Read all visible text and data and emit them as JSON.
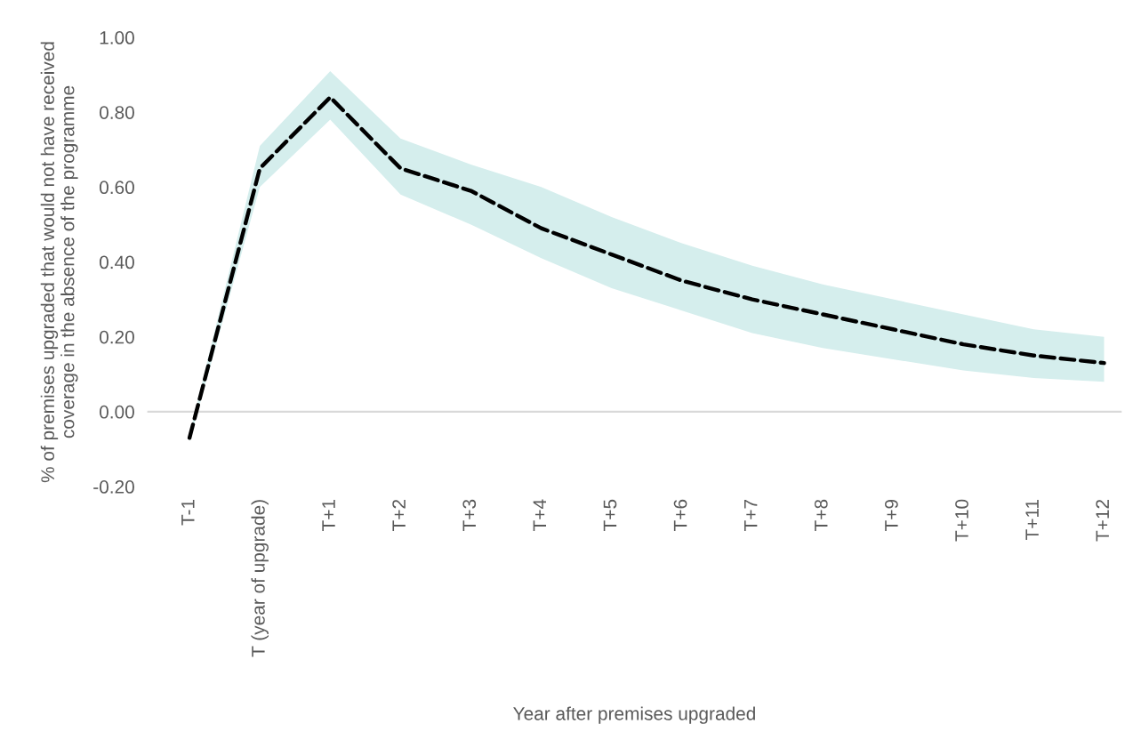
{
  "chart_data": {
    "type": "line",
    "xlabel": "Year after premises upgraded",
    "ylabel": "% of premises upgraded that would not have received\ncoverage in the absence of the programme",
    "categories": [
      "T-1",
      "T (year of upgrade)",
      "T+1",
      "T+2",
      "T+3",
      "T+4",
      "T+5",
      "T+6",
      "T+7",
      "T+8",
      "T+9",
      "T+10",
      "T+11",
      "T+12"
    ],
    "series": [
      {
        "color": "#000000",
        "values": [
          -0.07,
          0.65,
          0.84,
          0.65,
          0.59,
          0.49,
          0.42,
          0.35,
          0.3,
          0.26,
          0.22,
          0.18,
          0.15,
          0.13
        ],
        "lower": [
          -0.08,
          0.6,
          0.78,
          0.58,
          0.5,
          0.41,
          0.33,
          0.27,
          0.21,
          0.17,
          0.14,
          0.11,
          0.09,
          0.08
        ],
        "upper": [
          -0.06,
          0.71,
          0.91,
          0.73,
          0.66,
          0.6,
          0.52,
          0.45,
          0.39,
          0.34,
          0.3,
          0.26,
          0.22,
          0.2
        ]
      }
    ],
    "ylim": [
      -0.2,
      1.0
    ],
    "yticks": [
      {
        "value": -0.2,
        "label": "-0.20"
      },
      {
        "value": 0,
        "label": "0.00"
      },
      {
        "value": 0.2,
        "label": "0.20"
      },
      {
        "value": 0.4,
        "label": "0.40"
      },
      {
        "value": 0.6,
        "label": "0.60"
      },
      {
        "value": 0.8,
        "label": "0.80"
      },
      {
        "value": 1.0,
        "label": "1.00"
      }
    ],
    "ref_lines": [
      {
        "axis": "y",
        "value": 0,
        "color": "#d9d9d9"
      }
    ],
    "grid": false,
    "legend": false,
    "line_style": "dashed",
    "marker": "none"
  }
}
